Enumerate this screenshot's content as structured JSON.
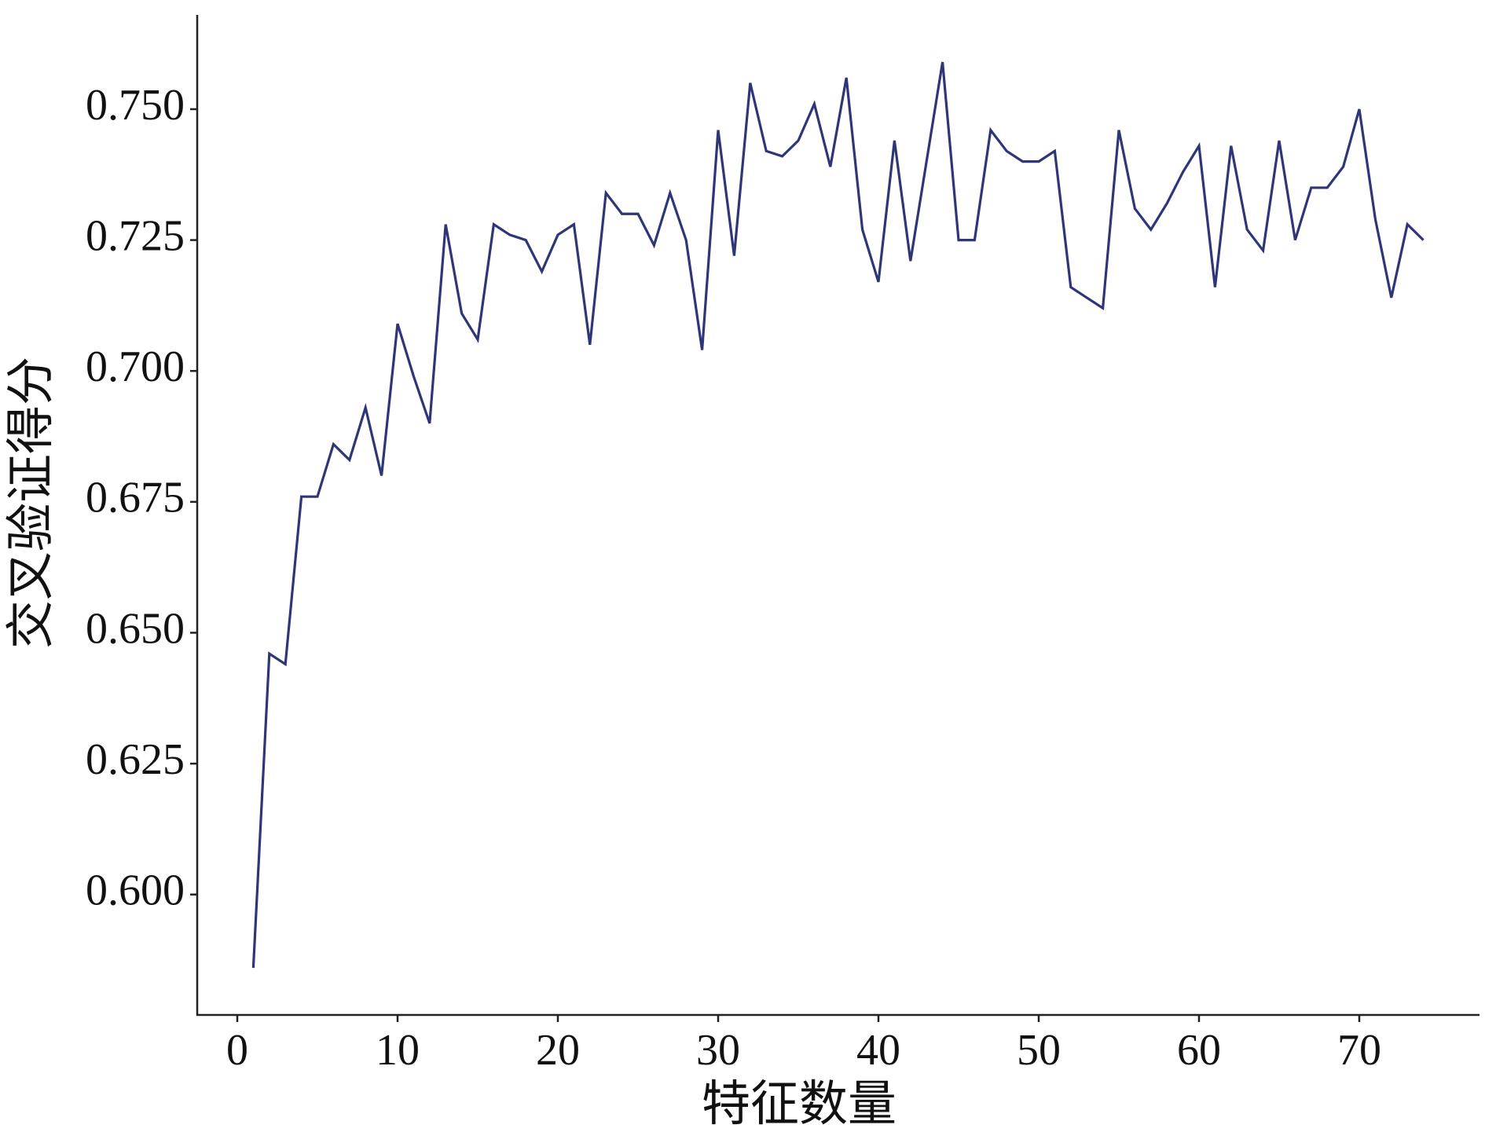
{
  "chart_data": {
    "type": "line",
    "x_label": "特征数量",
    "y_label": "交叉验证得分",
    "x": [
      1,
      2,
      3,
      4,
      5,
      6,
      7,
      8,
      9,
      10,
      11,
      12,
      13,
      14,
      15,
      16,
      17,
      18,
      19,
      20,
      21,
      22,
      23,
      24,
      25,
      26,
      27,
      28,
      29,
      30,
      31,
      32,
      33,
      34,
      35,
      36,
      37,
      38,
      39,
      40,
      41,
      42,
      43,
      44,
      45,
      46,
      47,
      48,
      49,
      50,
      51,
      52,
      53,
      54,
      55,
      56,
      57,
      58,
      59,
      60,
      61,
      62,
      63,
      64,
      65,
      66,
      67,
      68,
      69,
      70,
      71,
      72,
      73,
      74
    ],
    "series": [
      {
        "color": "#2f3677",
        "values": [
          0.586,
          0.646,
          0.644,
          0.676,
          0.676,
          0.686,
          0.683,
          0.693,
          0.68,
          0.709,
          0.699,
          0.69,
          0.728,
          0.711,
          0.706,
          0.728,
          0.726,
          0.725,
          0.719,
          0.726,
          0.728,
          0.705,
          0.734,
          0.73,
          0.73,
          0.724,
          0.734,
          0.725,
          0.704,
          0.746,
          0.722,
          0.755,
          0.742,
          0.741,
          0.744,
          0.751,
          0.739,
          0.756,
          0.727,
          0.717,
          0.744,
          0.721,
          0.74,
          0.759,
          0.725,
          0.725,
          0.746,
          0.742,
          0.74,
          0.74,
          0.742,
          0.716,
          0.714,
          0.712,
          0.746,
          0.731,
          0.727,
          0.732,
          0.738,
          0.743,
          0.716,
          0.743,
          0.727,
          0.723,
          0.744,
          0.725,
          0.735,
          0.735,
          0.739,
          0.75,
          0.729,
          0.714,
          0.728,
          0.725
        ]
      }
    ],
    "xlim": [
      -2.5,
      77.5
    ],
    "ylim": [
      0.577,
      0.768
    ],
    "xticks": [
      0,
      10,
      20,
      30,
      40,
      50,
      60,
      70
    ],
    "yticks": [
      {
        "value": 0.6,
        "label": "0.600"
      },
      {
        "value": 0.625,
        "label": "0.625"
      },
      {
        "value": 0.65,
        "label": "0.650"
      },
      {
        "value": 0.675,
        "label": "0.675"
      },
      {
        "value": 0.7,
        "label": "0.700"
      },
      {
        "value": 0.725,
        "label": "0.725"
      },
      {
        "value": 0.75,
        "label": "0.750"
      }
    ],
    "grid": false
  }
}
